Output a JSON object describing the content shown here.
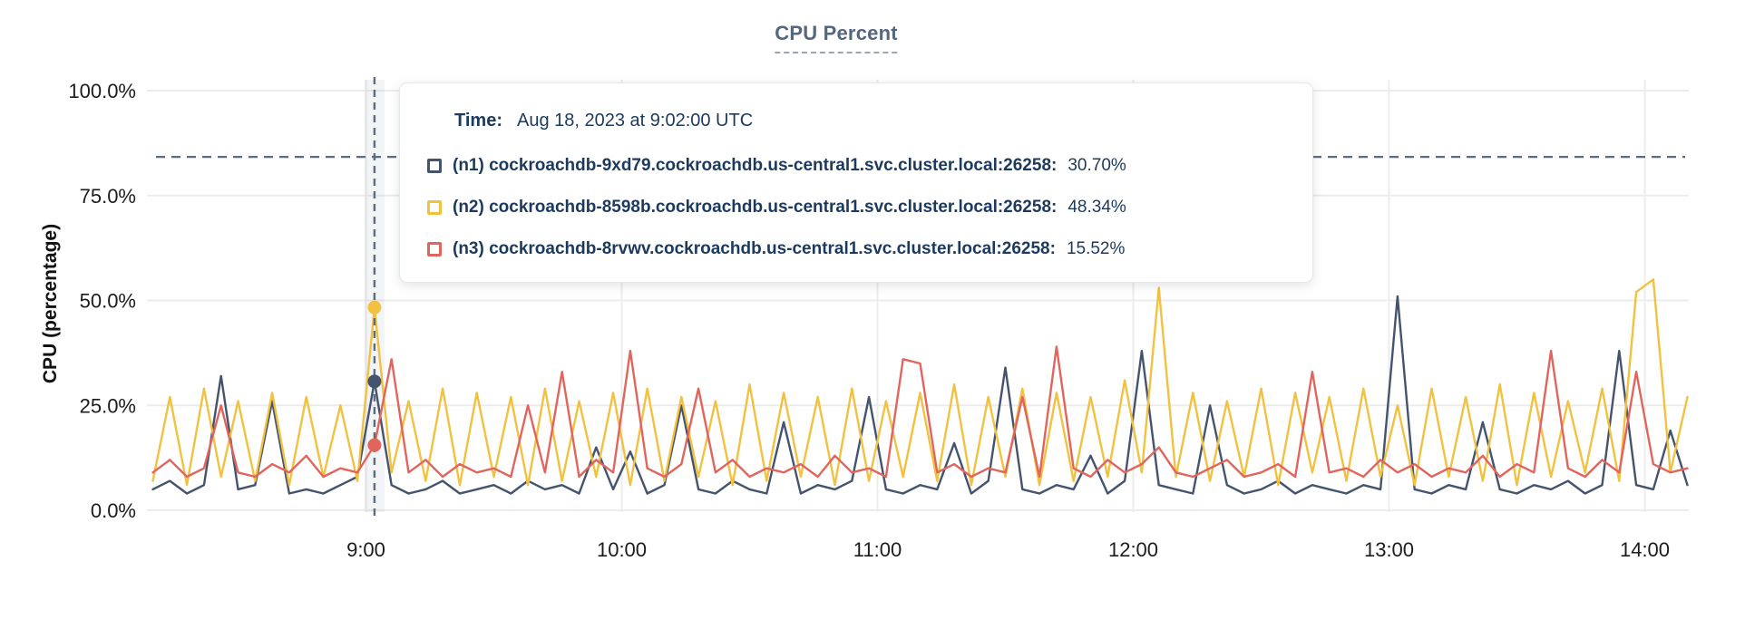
{
  "page": {
    "title": "CPU Percent"
  },
  "chart_data": {
    "type": "line",
    "title": "CPU Percent",
    "xlabel": "",
    "ylabel": "CPU (percentage)",
    "ylim": [
      0,
      100
    ],
    "grid": true,
    "y_ticks": [
      {
        "value": 0,
        "label": "0.0%"
      },
      {
        "value": 25,
        "label": "25.0%"
      },
      {
        "value": 50,
        "label": "50.0%"
      },
      {
        "value": 75,
        "label": "75.0%"
      },
      {
        "value": 100,
        "label": "100.0%"
      }
    ],
    "x_ticks": [
      {
        "minutes": 540,
        "label": "9:00"
      },
      {
        "minutes": 600,
        "label": "10:00"
      },
      {
        "minutes": 660,
        "label": "11:00"
      },
      {
        "minutes": 720,
        "label": "12:00"
      },
      {
        "minutes": 780,
        "label": "13:00"
      },
      {
        "minutes": 840,
        "label": "14:00"
      }
    ],
    "x_start_minutes": 490,
    "x_step_minutes": 4,
    "threshold_line": {
      "value": 84.2,
      "style": "dashed",
      "color": "#5a6c82"
    },
    "series": [
      {
        "id": "n1",
        "name": "(n1) cockroachdb-9xd79.cockroachdb.us-central1.svc.cluster.local:26258",
        "color": "#44536E",
        "values": [
          5,
          7,
          4,
          6,
          32,
          5,
          6,
          26,
          4,
          5,
          4,
          6,
          8,
          30.7,
          6,
          4,
          5,
          7,
          4,
          5,
          6,
          4,
          7,
          5,
          6,
          4,
          15,
          5,
          14,
          4,
          6,
          25,
          5,
          4,
          7,
          5,
          4,
          21,
          4,
          6,
          5,
          7,
          27,
          5,
          4,
          6,
          5,
          16,
          4,
          7,
          34,
          5,
          4,
          6,
          5,
          13,
          4,
          7,
          38,
          6,
          5,
          4,
          25,
          6,
          4,
          5,
          7,
          4,
          6,
          5,
          4,
          6,
          5,
          51,
          5,
          4,
          6,
          5,
          21,
          5,
          4,
          6,
          5,
          7,
          4,
          6,
          38,
          6,
          5,
          19,
          6
        ]
      },
      {
        "id": "n2",
        "name": "(n2) cockroachdb-8598b.cockroachdb.us-central1.svc.cluster.local:26258",
        "color": "#F2C140",
        "values": [
          7,
          27,
          6,
          29,
          8,
          26,
          7,
          28,
          6,
          27,
          8,
          25,
          7,
          48.34,
          9,
          26,
          7,
          29,
          6,
          28,
          8,
          27,
          6,
          29,
          7,
          26,
          8,
          28,
          6,
          29,
          7,
          27,
          8,
          26,
          6,
          30,
          7,
          28,
          8,
          27,
          6,
          29,
          7,
          26,
          8,
          28,
          7,
          30,
          6,
          27,
          8,
          29,
          6,
          28,
          7,
          27,
          8,
          31,
          9,
          53,
          8,
          28,
          7,
          26,
          8,
          29,
          6,
          28,
          9,
          27,
          7,
          29,
          8,
          25,
          6,
          29,
          8,
          27,
          7,
          30,
          6,
          28,
          8,
          26,
          9,
          29,
          7,
          52,
          55,
          9,
          27
        ]
      },
      {
        "id": "n3",
        "name": "(n3) cockroachdb-8rvwv.cockroachdb.us-central1.svc.cluster.local:26258",
        "color": "#E2655D",
        "values": [
          9,
          12,
          8,
          10,
          25,
          9,
          8,
          11,
          9,
          13,
          8,
          10,
          9,
          15.52,
          36,
          9,
          12,
          8,
          11,
          9,
          10,
          8,
          25,
          9,
          33,
          8,
          12,
          9,
          38,
          10,
          8,
          11,
          29,
          9,
          12,
          8,
          10,
          9,
          11,
          8,
          13,
          9,
          10,
          8,
          36,
          35,
          9,
          11,
          8,
          10,
          9,
          27,
          8,
          39,
          10,
          8,
          12,
          9,
          11,
          15,
          9,
          8,
          10,
          12,
          8,
          9,
          11,
          8,
          33,
          9,
          10,
          8,
          12,
          9,
          11,
          8,
          10,
          9,
          13,
          8,
          11,
          9,
          38,
          10,
          8,
          12,
          9,
          33,
          11,
          9,
          10
        ]
      }
    ],
    "hover": {
      "minutes": 542,
      "time_label": "Aug 18, 2023 at 9:02:00 UTC",
      "values": {
        "n1": 30.7,
        "n2": 48.34,
        "n3": 15.52
      }
    }
  },
  "tooltip": {
    "time_label": "Time:",
    "time_value": "Aug 18, 2023 at 9:02:00 UTC",
    "rows": [
      {
        "label": "(n1) cockroachdb-9xd79.cockroachdb.us-central1.svc.cluster.local:26258:",
        "value": "30.70%"
      },
      {
        "label": "(n2) cockroachdb-8598b.cockroachdb.us-central1.svc.cluster.local:26258:",
        "value": "48.34%"
      },
      {
        "label": "(n3) cockroachdb-8rvwv.cockroachdb.us-central1.svc.cluster.local:26258:",
        "value": "15.52%"
      }
    ]
  }
}
